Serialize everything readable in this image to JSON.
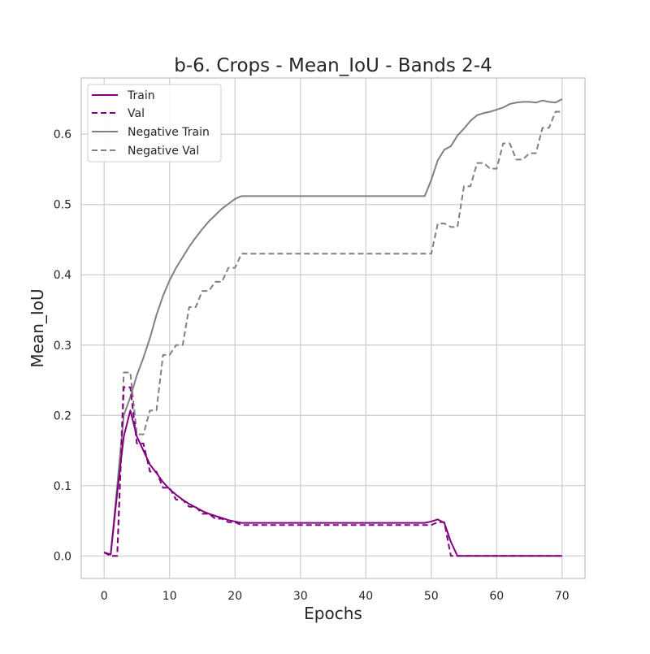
{
  "chart_data": {
    "type": "line",
    "title": "b-6. Crops - Mean_IoU - Bands 2-4",
    "xlabel": "Epochs",
    "ylabel": "Mean_IoU",
    "xlim": [
      -3.5,
      73.5
    ],
    "ylim": [
      -0.032,
      0.68
    ],
    "xticks": [
      0,
      10,
      20,
      30,
      40,
      50,
      60,
      70
    ],
    "yticks": [
      0.0,
      0.1,
      0.2,
      0.3,
      0.4,
      0.5,
      0.6
    ],
    "ytick_labels": [
      "0.0",
      "0.1",
      "0.2",
      "0.3",
      "0.4",
      "0.5",
      "0.6"
    ],
    "grid": true,
    "legend_position": "top-left",
    "series": [
      {
        "name": "Train",
        "color": "#800080",
        "style": "solid",
        "x": [
          0,
          1,
          2,
          3,
          4,
          5,
          6,
          7,
          8,
          9,
          10,
          11,
          12,
          13,
          14,
          15,
          16,
          17,
          18,
          19,
          20,
          21,
          22,
          25,
          30,
          35,
          40,
          45,
          49,
          50,
          51,
          52,
          53,
          54,
          55,
          60,
          65,
          70
        ],
        "y": [
          0.005,
          0.002,
          0.09,
          0.17,
          0.207,
          0.17,
          0.15,
          0.13,
          0.118,
          0.105,
          0.095,
          0.087,
          0.08,
          0.074,
          0.069,
          0.064,
          0.06,
          0.057,
          0.054,
          0.051,
          0.049,
          0.047,
          0.047,
          0.047,
          0.047,
          0.047,
          0.047,
          0.047,
          0.047,
          0.049,
          0.052,
          0.047,
          0.02,
          0.0,
          0.0,
          0.0,
          0.0,
          0.0
        ]
      },
      {
        "name": "Val",
        "color": "#800080",
        "style": "dashed",
        "x": [
          0,
          1,
          2,
          3,
          4,
          5,
          6,
          7,
          8,
          9,
          10,
          11,
          12,
          13,
          14,
          15,
          16,
          17,
          18,
          19,
          20,
          21,
          25,
          30,
          35,
          40,
          45,
          50,
          51,
          52,
          53,
          54,
          60,
          65,
          70
        ],
        "y": [
          0.005,
          0.0,
          0.0,
          0.24,
          0.24,
          0.16,
          0.16,
          0.12,
          0.12,
          0.097,
          0.097,
          0.08,
          0.08,
          0.07,
          0.07,
          0.06,
          0.06,
          0.053,
          0.053,
          0.048,
          0.048,
          0.044,
          0.044,
          0.044,
          0.044,
          0.044,
          0.044,
          0.044,
          0.048,
          0.048,
          0.0,
          0.0,
          0.0,
          0.0,
          0.0
        ]
      },
      {
        "name": "Negative Train",
        "color": "#808080",
        "style": "solid",
        "x": [
          0,
          1,
          2,
          3,
          4,
          5,
          6,
          7,
          8,
          9,
          10,
          11,
          12,
          13,
          14,
          15,
          16,
          17,
          18,
          19,
          20,
          21,
          25,
          30,
          35,
          40,
          45,
          49,
          50,
          51,
          52,
          53,
          54,
          55,
          56,
          57,
          58,
          59,
          60,
          61,
          62,
          63,
          64,
          65,
          66,
          67,
          68,
          69,
          70
        ],
        "y": [
          0.005,
          0.002,
          0.1,
          0.2,
          0.226,
          0.257,
          0.282,
          0.31,
          0.343,
          0.37,
          0.392,
          0.41,
          0.425,
          0.44,
          0.453,
          0.465,
          0.476,
          0.485,
          0.494,
          0.501,
          0.508,
          0.512,
          0.512,
          0.512,
          0.512,
          0.512,
          0.512,
          0.512,
          0.535,
          0.563,
          0.578,
          0.583,
          0.598,
          0.608,
          0.619,
          0.627,
          0.63,
          0.632,
          0.635,
          0.638,
          0.643,
          0.645,
          0.646,
          0.646,
          0.645,
          0.648,
          0.646,
          0.645,
          0.65
        ]
      },
      {
        "name": "Negative Val",
        "color": "#808080",
        "style": "dashed",
        "x": [
          0,
          1,
          2,
          3,
          4,
          5,
          6,
          7,
          8,
          9,
          10,
          11,
          12,
          13,
          14,
          15,
          16,
          17,
          18,
          19,
          20,
          21,
          25,
          30,
          35,
          40,
          45,
          50,
          51,
          52,
          53,
          54,
          55,
          56,
          57,
          58,
          59,
          60,
          61,
          62,
          63,
          64,
          65,
          66,
          67,
          68,
          69,
          70
        ],
        "y": [
          0.005,
          0.0,
          0.0,
          0.261,
          0.261,
          0.173,
          0.173,
          0.207,
          0.207,
          0.286,
          0.286,
          0.3,
          0.3,
          0.354,
          0.354,
          0.377,
          0.377,
          0.39,
          0.39,
          0.41,
          0.41,
          0.43,
          0.43,
          0.43,
          0.43,
          0.43,
          0.43,
          0.43,
          0.473,
          0.473,
          0.468,
          0.468,
          0.526,
          0.526,
          0.559,
          0.559,
          0.551,
          0.551,
          0.587,
          0.587,
          0.564,
          0.564,
          0.573,
          0.573,
          0.609,
          0.609,
          0.632,
          0.632
        ]
      }
    ]
  }
}
